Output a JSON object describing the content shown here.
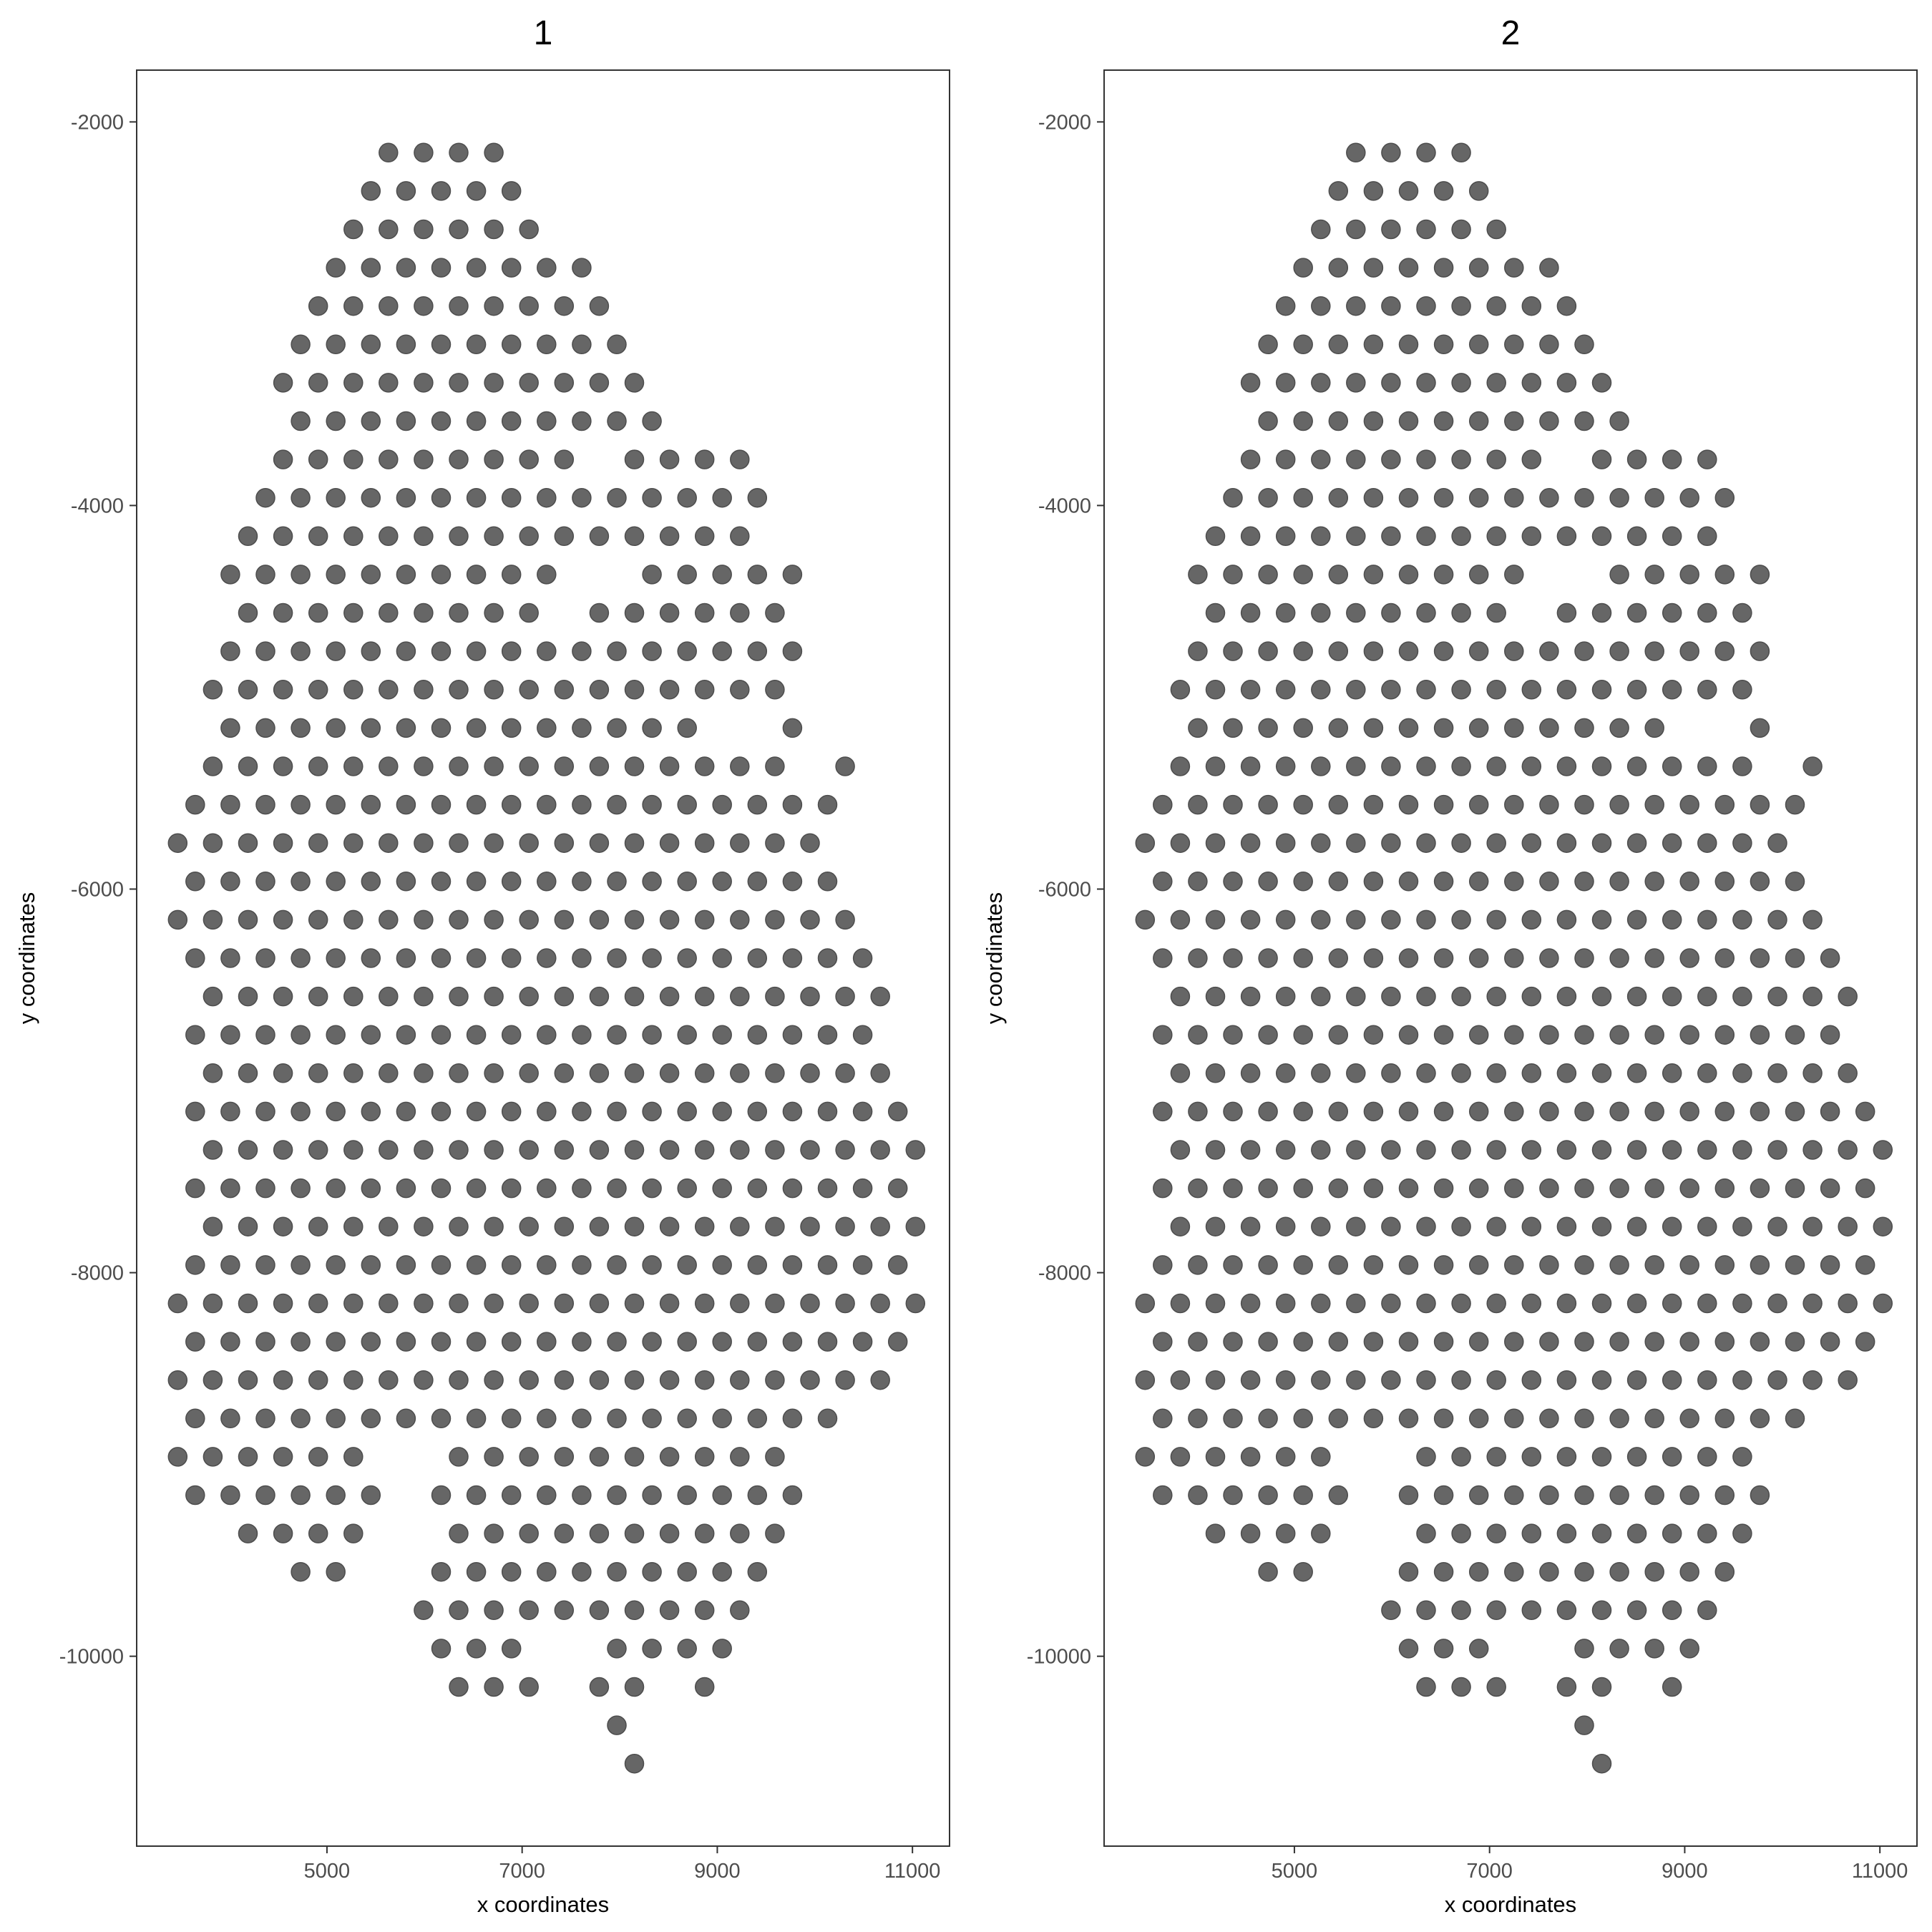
{
  "chart_data": [
    {
      "type": "scatter",
      "title": "1",
      "xlabel": "x coordinates",
      "ylabel": "y coordinates",
      "xticks": [
        "5000",
        "7000",
        "9000",
        "11000"
      ],
      "yticks": [
        "-2000",
        "-4000",
        "-6000",
        "-8000",
        "-10000"
      ],
      "xlim": [
        3050,
        11380
      ],
      "ylim": [
        -10990,
        -1730
      ],
      "grid": false,
      "point_color": "#666666",
      "point_stroke": "#4d4d4d",
      "points_ref": "spots"
    },
    {
      "type": "scatter",
      "title": "2",
      "xlabel": "x coordinates",
      "ylabel": "y coordinates",
      "xticks": [
        "5000",
        "7000",
        "9000",
        "11000"
      ],
      "yticks": [
        "-2000",
        "-4000",
        "-6000",
        "-8000",
        "-10000"
      ],
      "xlim": [
        3050,
        11380
      ],
      "ylim": [
        -10990,
        -1730
      ],
      "grid": false,
      "point_color": "#666666",
      "point_stroke": "#4d4d4d",
      "points_ref": "spots"
    }
  ],
  "spots": {
    "note_shared": "same spot coordinates shown in both panels",
    "rows": [
      {
        "y": -2160,
        "x": [
          5630,
          5990,
          6350,
          6710
        ]
      },
      {
        "y": -2360,
        "x": [
          5450,
          5810,
          6170,
          6530,
          6890
        ]
      },
      {
        "y": -2560,
        "x": [
          5270,
          5630,
          5990,
          6350,
          6710,
          7070
        ]
      },
      {
        "y": -2760,
        "x": [
          5090,
          5450,
          5810,
          6170,
          6530,
          6890,
          7250,
          7610
        ]
      },
      {
        "y": -2960,
        "x": [
          4910,
          5270,
          5630,
          5990,
          6350,
          6710,
          7070,
          7430,
          7790
        ]
      },
      {
        "y": -3160,
        "x": [
          4730,
          5090,
          5450,
          5810,
          6170,
          6530,
          6890,
          7250,
          7610,
          7970
        ]
      },
      {
        "y": -3360,
        "x": [
          4550,
          4910,
          5270,
          5630,
          5990,
          6350,
          6710,
          7070,
          7430,
          7790,
          8150
        ]
      },
      {
        "y": -3560,
        "x": [
          4730,
          5090,
          5450,
          5810,
          6170,
          6530,
          6890,
          7250,
          7610,
          7970,
          8330
        ]
      },
      {
        "y": -3760,
        "x": [
          4550,
          4910,
          5270,
          5630,
          5990,
          6350,
          6710,
          7070,
          7430,
          8150,
          8510,
          8870,
          9230
        ]
      },
      {
        "y": -3960,
        "x": [
          4370,
          4730,
          5090,
          5450,
          5810,
          6170,
          6530,
          6890,
          7250,
          7610,
          7970,
          8330,
          8690,
          9050,
          9410
        ]
      },
      {
        "y": -4160,
        "x": [
          4190,
          4550,
          4910,
          5270,
          5630,
          5990,
          6350,
          6710,
          7070,
          7430,
          7790,
          8150,
          8510,
          8870,
          9230
        ]
      },
      {
        "y": -4360,
        "x": [
          4010,
          4370,
          4730,
          5090,
          5450,
          5810,
          6170,
          6530,
          6890,
          7250,
          8330,
          8690,
          9050,
          9410,
          9770
        ]
      },
      {
        "y": -4560,
        "x": [
          4190,
          4550,
          4910,
          5270,
          5630,
          5990,
          6350,
          6710,
          7070,
          7790,
          8150,
          8510,
          8870,
          9230,
          9590
        ]
      },
      {
        "y": -4760,
        "x": [
          4010,
          4370,
          4730,
          5090,
          5450,
          5810,
          6170,
          6530,
          6890,
          7250,
          7610,
          7970,
          8330,
          8690,
          9050,
          9410,
          9770
        ]
      },
      {
        "y": -4960,
        "x": [
          3830,
          4190,
          4550,
          4910,
          5270,
          5630,
          5990,
          6350,
          6710,
          7070,
          7430,
          7790,
          8150,
          8510,
          8870,
          9230,
          9590
        ]
      },
      {
        "y": -5160,
        "x": [
          4010,
          4370,
          4730,
          5090,
          5450,
          5810,
          6170,
          6530,
          6890,
          7250,
          7610,
          7970,
          8330,
          8690,
          9770
        ]
      },
      {
        "y": -5360,
        "x": [
          3830,
          4190,
          4550,
          4910,
          5270,
          5630,
          5990,
          6350,
          6710,
          7070,
          7430,
          7790,
          8150,
          8510,
          8870,
          9230,
          9590,
          10310
        ]
      },
      {
        "y": -5560,
        "x": [
          3650,
          4010,
          4370,
          4730,
          5090,
          5450,
          5810,
          6170,
          6530,
          6890,
          7250,
          7610,
          7970,
          8330,
          8690,
          9050,
          9410,
          9770,
          10130
        ]
      },
      {
        "y": -5760,
        "x": [
          3470,
          3830,
          4190,
          4550,
          4910,
          5270,
          5630,
          5990,
          6350,
          6710,
          7070,
          7430,
          7790,
          8150,
          8510,
          8870,
          9230,
          9590,
          9950
        ]
      },
      {
        "y": -5960,
        "x": [
          3650,
          4010,
          4370,
          4730,
          5090,
          5450,
          5810,
          6170,
          6530,
          6890,
          7250,
          7610,
          7970,
          8330,
          8690,
          9050,
          9410,
          9770,
          10130
        ]
      },
      {
        "y": -6160,
        "x": [
          3470,
          3830,
          4190,
          4550,
          4910,
          5270,
          5630,
          5990,
          6350,
          6710,
          7070,
          7430,
          7790,
          8150,
          8510,
          8870,
          9230,
          9590,
          9950,
          10310
        ]
      },
      {
        "y": -6360,
        "x": [
          3650,
          4010,
          4370,
          4730,
          5090,
          5450,
          5810,
          6170,
          6530,
          6890,
          7250,
          7610,
          7970,
          8330,
          8690,
          9050,
          9410,
          9770,
          10130,
          10490
        ]
      },
      {
        "y": -6560,
        "x": [
          3830,
          4190,
          4550,
          4910,
          5270,
          5630,
          5990,
          6350,
          6710,
          7070,
          7430,
          7790,
          8150,
          8510,
          8870,
          9230,
          9590,
          9950,
          10310,
          10670
        ]
      },
      {
        "y": -6760,
        "x": [
          3650,
          4010,
          4370,
          4730,
          5090,
          5450,
          5810,
          6170,
          6530,
          6890,
          7250,
          7610,
          7970,
          8330,
          8690,
          9050,
          9410,
          9770,
          10130,
          10490
        ]
      },
      {
        "y": -6960,
        "x": [
          3830,
          4190,
          4550,
          4910,
          5270,
          5630,
          5990,
          6350,
          6710,
          7070,
          7430,
          7790,
          8150,
          8510,
          8870,
          9230,
          9590,
          9950,
          10310,
          10670
        ]
      },
      {
        "y": -7160,
        "x": [
          3650,
          4010,
          4370,
          4730,
          5090,
          5450,
          5810,
          6170,
          6530,
          6890,
          7250,
          7610,
          7970,
          8330,
          8690,
          9050,
          9410,
          9770,
          10130,
          10490,
          10850
        ]
      },
      {
        "y": -7360,
        "x": [
          3830,
          4190,
          4550,
          4910,
          5270,
          5630,
          5990,
          6350,
          6710,
          7070,
          7430,
          7790,
          8150,
          8510,
          8870,
          9230,
          9590,
          9950,
          10310,
          10670,
          11030
        ]
      },
      {
        "y": -7560,
        "x": [
          3650,
          4010,
          4370,
          4730,
          5090,
          5450,
          5810,
          6170,
          6530,
          6890,
          7250,
          7610,
          7970,
          8330,
          8690,
          9050,
          9410,
          9770,
          10130,
          10490,
          10850
        ]
      },
      {
        "y": -7760,
        "x": [
          3830,
          4190,
          4550,
          4910,
          5270,
          5630,
          5990,
          6350,
          6710,
          7070,
          7430,
          7790,
          8150,
          8510,
          8870,
          9230,
          9590,
          9950,
          10310,
          10670,
          11030
        ]
      },
      {
        "y": -7960,
        "x": [
          3650,
          4010,
          4370,
          4730,
          5090,
          5450,
          5810,
          6170,
          6530,
          6890,
          7250,
          7610,
          7970,
          8330,
          8690,
          9050,
          9410,
          9770,
          10130,
          10490,
          10850
        ]
      },
      {
        "y": -8160,
        "x": [
          3470,
          3830,
          4190,
          4550,
          4910,
          5270,
          5630,
          5990,
          6350,
          6710,
          7070,
          7430,
          7790,
          8150,
          8510,
          8870,
          9230,
          9590,
          9950,
          10310,
          10670,
          11030
        ]
      },
      {
        "y": -8360,
        "x": [
          3650,
          4010,
          4370,
          4730,
          5090,
          5450,
          5810,
          6170,
          6530,
          6890,
          7250,
          7610,
          7970,
          8330,
          8690,
          9050,
          9410,
          9770,
          10130,
          10490,
          10850
        ]
      },
      {
        "y": -8560,
        "x": [
          3470,
          3830,
          4190,
          4550,
          4910,
          5270,
          5630,
          5990,
          6350,
          6710,
          7070,
          7430,
          7790,
          8150,
          8510,
          8870,
          9230,
          9590,
          9950,
          10310,
          10670
        ]
      },
      {
        "y": -8760,
        "x": [
          3650,
          4010,
          4370,
          4730,
          5090,
          5450,
          5810,
          6170,
          6530,
          6890,
          7250,
          7610,
          7970,
          8330,
          8690,
          9050,
          9410,
          9770,
          10130
        ]
      },
      {
        "y": -8960,
        "x": [
          3470,
          3830,
          4190,
          4550,
          4910,
          5270,
          6350,
          6710,
          7070,
          7430,
          7790,
          8150,
          8510,
          8870,
          9230,
          9590
        ]
      },
      {
        "y": -9160,
        "x": [
          3650,
          4010,
          4370,
          4730,
          5090,
          5450,
          6170,
          6530,
          6890,
          7250,
          7610,
          7970,
          8330,
          8690,
          9050,
          9410,
          9770
        ]
      },
      {
        "y": -9360,
        "x": [
          4190,
          4550,
          4910,
          5270,
          6350,
          6710,
          7070,
          7430,
          7790,
          8150,
          8510,
          8870,
          9230,
          9590
        ]
      },
      {
        "y": -9560,
        "x": [
          4730,
          5090,
          6170,
          6530,
          6890,
          7250,
          7610,
          7970,
          8330,
          8690,
          9050,
          9410
        ]
      },
      {
        "y": -9760,
        "x": [
          5990,
          6350,
          6710,
          7070,
          7430,
          7790,
          8150,
          8510,
          8870,
          9230
        ]
      },
      {
        "y": -9960,
        "x": [
          6170,
          6530,
          6890,
          7970,
          8330,
          8690,
          9050
        ]
      },
      {
        "y": -10160,
        "x": [
          6350,
          6710,
          7070,
          7790,
          8150,
          8870
        ]
      },
      {
        "y": -10360,
        "x": [
          7970
        ]
      },
      {
        "y": -10560,
        "x": [
          8150
        ]
      }
    ]
  }
}
